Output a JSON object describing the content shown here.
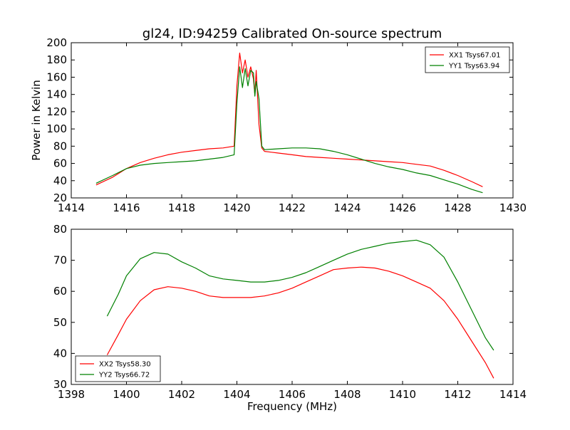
{
  "title": "gl24, ID:94259 Calibrated On-source spectrum",
  "chart_data": [
    {
      "type": "line",
      "xlabel": "",
      "ylabel": "Power in Kelvin",
      "xlim": [
        1414,
        1430
      ],
      "ylim": [
        20,
        200
      ],
      "xticks": [
        1414,
        1416,
        1418,
        1420,
        1422,
        1424,
        1426,
        1428,
        1430
      ],
      "yticks": [
        20,
        40,
        60,
        80,
        100,
        120,
        140,
        160,
        180,
        200
      ],
      "grid": false,
      "legend_position": "upper right",
      "series": [
        {
          "name": "XX1 Tsys67.01",
          "color": "#ff0000",
          "x": [
            1414.9,
            1415.5,
            1416,
            1416.5,
            1417,
            1417.5,
            1418,
            1418.5,
            1419,
            1419.5,
            1419.9,
            1420.0,
            1420.1,
            1420.2,
            1420.3,
            1420.4,
            1420.5,
            1420.6,
            1420.65,
            1420.7,
            1420.8,
            1420.9,
            1421,
            1421.5,
            1422,
            1422.5,
            1423,
            1423.5,
            1424,
            1424.5,
            1425,
            1425.5,
            1426,
            1426.5,
            1427,
            1427.5,
            1428,
            1428.5,
            1428.9
          ],
          "y": [
            35,
            44,
            54,
            61,
            66,
            70,
            73,
            75,
            77,
            78,
            80,
            150,
            188,
            165,
            180,
            160,
            172,
            158,
            140,
            168,
            105,
            78,
            74,
            72,
            70,
            68,
            67,
            66,
            65,
            64,
            63,
            62,
            61,
            59,
            57,
            52,
            46,
            39,
            33
          ]
        },
        {
          "name": "YY1 Tsys63.94",
          "color": "#008000",
          "x": [
            1414.9,
            1415.5,
            1416,
            1416.5,
            1417,
            1417.5,
            1418,
            1418.5,
            1419,
            1419.5,
            1419.9,
            1420.0,
            1420.1,
            1420.2,
            1420.3,
            1420.4,
            1420.5,
            1420.6,
            1420.65,
            1420.7,
            1420.8,
            1420.9,
            1421,
            1421.5,
            1422,
            1422.5,
            1423,
            1423.5,
            1424,
            1424.5,
            1425,
            1425.5,
            1426,
            1426.5,
            1427,
            1427.5,
            1428,
            1428.5,
            1428.9
          ],
          "y": [
            37,
            46,
            54,
            58,
            60,
            61,
            62,
            63,
            65,
            67,
            70,
            130,
            172,
            148,
            170,
            150,
            168,
            165,
            138,
            155,
            135,
            80,
            76,
            77,
            78,
            78,
            77,
            74,
            70,
            65,
            60,
            56,
            53,
            49,
            46,
            41,
            36,
            30,
            26
          ]
        }
      ]
    },
    {
      "type": "line",
      "xlabel": "Frequency (MHz)",
      "ylabel": "",
      "xlim": [
        1398,
        1414
      ],
      "ylim": [
        30,
        80
      ],
      "xticks": [
        1398,
        1400,
        1402,
        1404,
        1406,
        1408,
        1410,
        1412,
        1414
      ],
      "yticks": [
        30,
        40,
        50,
        60,
        70,
        80
      ],
      "grid": false,
      "legend_position": "lower left",
      "series": [
        {
          "name": "XX2 Tsys58.30",
          "color": "#ff0000",
          "x": [
            1399.3,
            1399.7,
            1400,
            1400.5,
            1401,
            1401.5,
            1402,
            1402.5,
            1403,
            1403.5,
            1404,
            1404.5,
            1405,
            1405.5,
            1406,
            1406.5,
            1407,
            1407.5,
            1408,
            1408.5,
            1409,
            1409.5,
            1410,
            1410.5,
            1411,
            1411.5,
            1412,
            1412.5,
            1413,
            1413.3
          ],
          "y": [
            39.5,
            46,
            51,
            57,
            60.5,
            61.5,
            61,
            60,
            58.5,
            58,
            58,
            58,
            58.5,
            59.5,
            61,
            63,
            65,
            67,
            67.5,
            67.8,
            67.5,
            66.5,
            65,
            63,
            61,
            57,
            51,
            44,
            37,
            32
          ]
        },
        {
          "name": "YY2 Tsys66.72",
          "color": "#008000",
          "x": [
            1399.3,
            1399.7,
            1400,
            1400.5,
            1401,
            1401.5,
            1402,
            1402.5,
            1403,
            1403.5,
            1404,
            1404.5,
            1405,
            1405.5,
            1406,
            1406.5,
            1407,
            1407.5,
            1408,
            1408.5,
            1409,
            1409.5,
            1410,
            1410.5,
            1411,
            1411.5,
            1412,
            1412.5,
            1413,
            1413.3
          ],
          "y": [
            52,
            59,
            65,
            70.5,
            72.5,
            72,
            69.5,
            67.5,
            65,
            64,
            63.5,
            63,
            63,
            63.5,
            64.5,
            66,
            68,
            70,
            72,
            73.5,
            74.5,
            75.5,
            76,
            76.5,
            75,
            71,
            63,
            54,
            45,
            41
          ]
        }
      ]
    }
  ]
}
